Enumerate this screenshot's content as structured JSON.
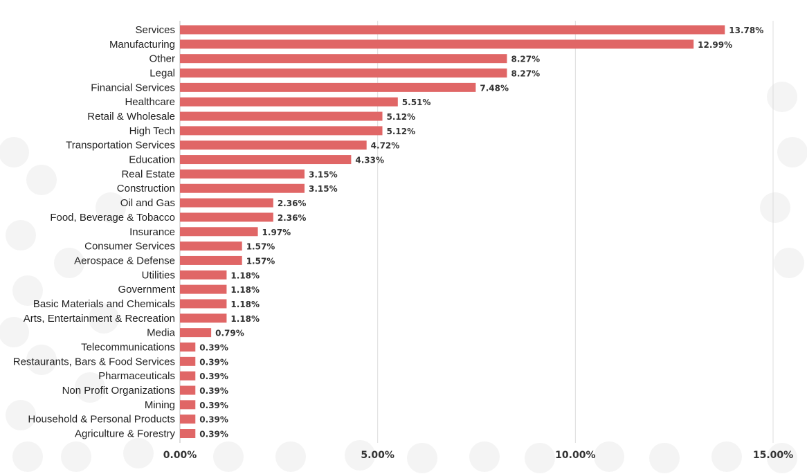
{
  "colors": {
    "bar": "#e06666",
    "grid": "#dcdcdc",
    "axis": "#bdbdbd",
    "background": "#ffffff",
    "decor_dots": "#f4f4f4"
  },
  "chart_data": {
    "type": "bar",
    "orientation": "horizontal",
    "title": "",
    "xlabel": "",
    "ylabel": "",
    "xlim": [
      0,
      15
    ],
    "grid": "vertical",
    "legend": "none",
    "x_ticks": [
      "0.00%",
      "5.00%",
      "10.00%",
      "15.00%"
    ],
    "x_tick_values": [
      0,
      5,
      10,
      15
    ],
    "categories": [
      "Services",
      "Manufacturing",
      "Other",
      "Legal",
      "Financial Services",
      "Healthcare",
      "Retail & Wholesale",
      "High Tech",
      "Transportation Services",
      "Education",
      "Real Estate",
      "Construction",
      "Oil and Gas",
      "Food, Beverage & Tobacco",
      "Insurance",
      "Consumer Services",
      "Aerospace & Defense",
      "Utilities",
      "Government",
      "Basic Materials and Chemicals",
      "Arts, Entertainment & Recreation",
      "Media",
      "Telecommunications",
      "Restaurants, Bars & Food Services",
      "Pharmaceuticals",
      "Non Profit Organizations",
      "Mining",
      "Household & Personal Products",
      "Agriculture & Forestry"
    ],
    "values": [
      13.78,
      12.99,
      8.27,
      8.27,
      7.48,
      5.51,
      5.12,
      5.12,
      4.72,
      4.33,
      3.15,
      3.15,
      2.36,
      2.36,
      1.97,
      1.57,
      1.57,
      1.18,
      1.18,
      1.18,
      1.18,
      0.79,
      0.39,
      0.39,
      0.39,
      0.39,
      0.39,
      0.39,
      0.39
    ],
    "value_labels": [
      "13.78%",
      "12.99%",
      "8.27%",
      "8.27%",
      "7.48%",
      "5.51%",
      "5.12%",
      "5.12%",
      "4.72%",
      "4.33%",
      "3.15%",
      "3.15%",
      "2.36%",
      "2.36%",
      "1.97%",
      "1.57%",
      "1.57%",
      "1.18%",
      "1.18%",
      "1.18%",
      "1.18%",
      "0.79%",
      "0.39%",
      "0.39%",
      "0.39%",
      "0.39%",
      "0.39%",
      "0.39%",
      "0.39%"
    ]
  }
}
